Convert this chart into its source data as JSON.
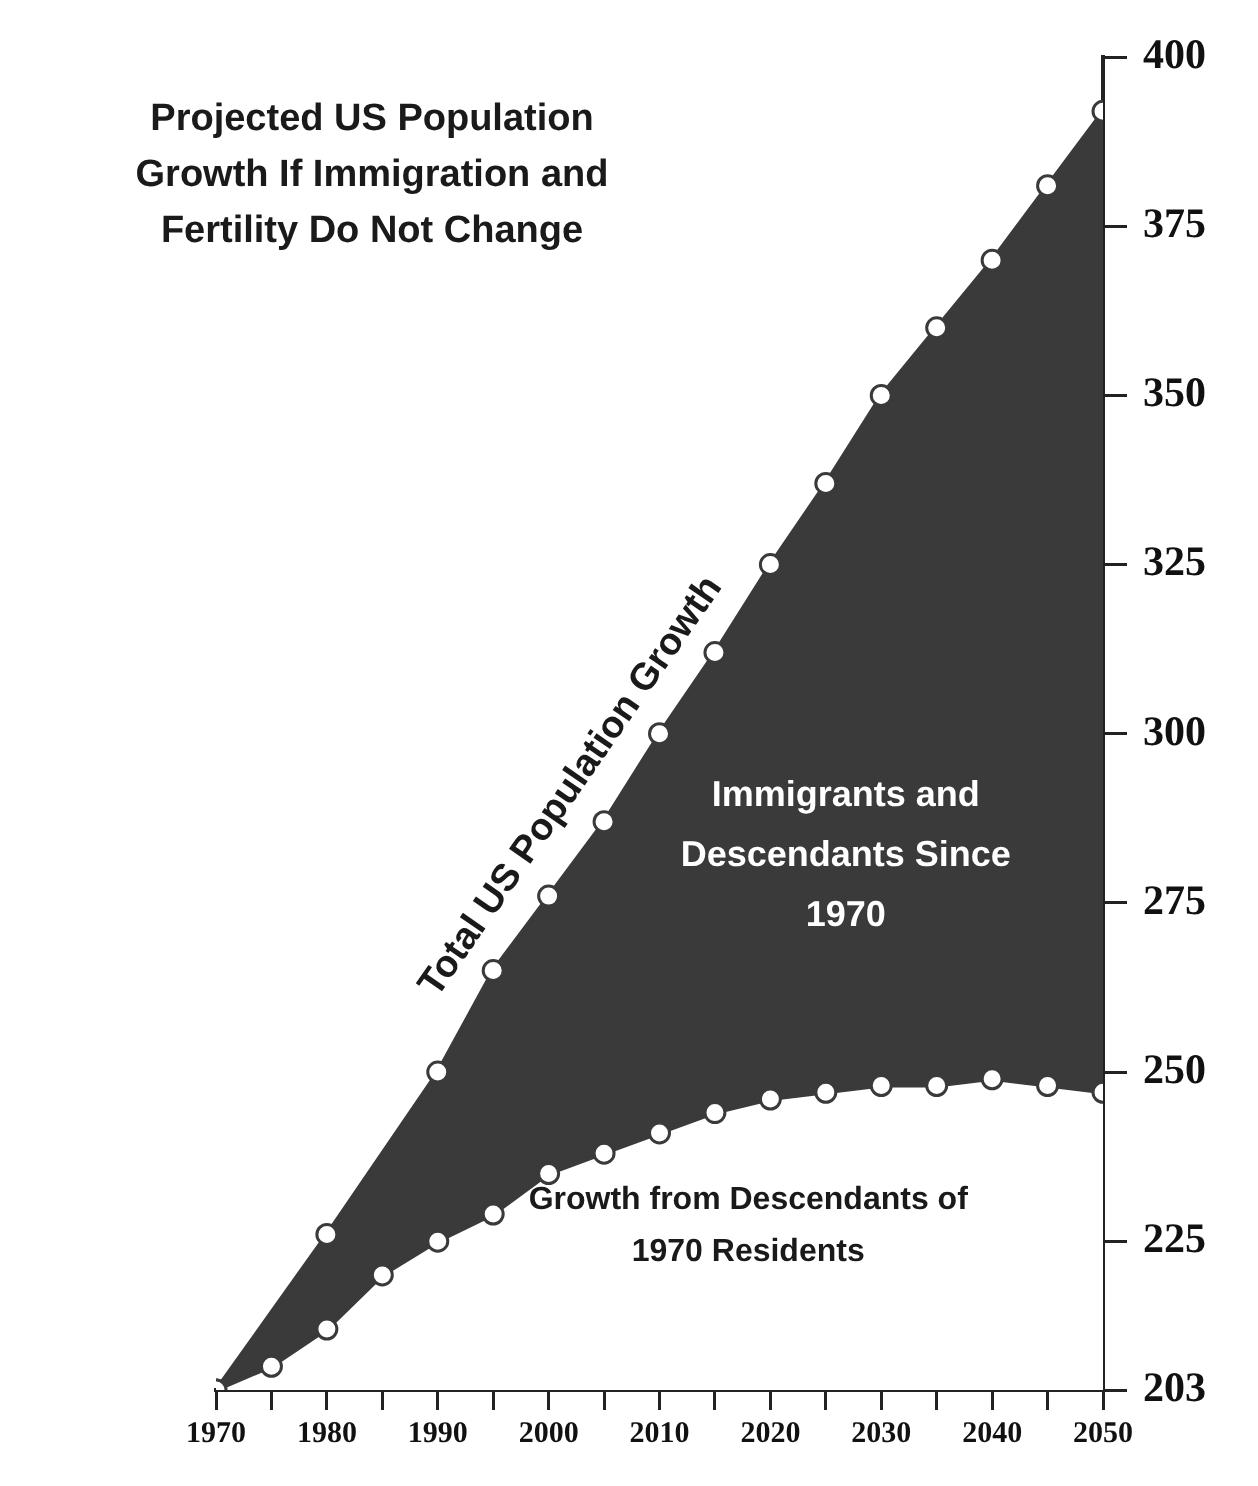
{
  "chart_data": {
    "type": "area",
    "title": "Projected US Population Growth If Immigration and Fertility Do Not Change",
    "series": [
      {
        "name": "Total US Population Growth",
        "type": "area",
        "color": "#3a3a3a",
        "x": [
          1970,
          1980,
          1990,
          1995,
          2000,
          2005,
          2010,
          2015,
          2020,
          2025,
          2030,
          2035,
          2040,
          2045,
          2050
        ],
        "values": [
          203,
          226,
          250,
          265,
          276,
          287,
          300,
          312,
          325,
          337,
          350,
          360,
          370,
          381,
          392
        ]
      },
      {
        "name": "Growth from Descendants of 1970 Residents",
        "type": "line",
        "color": "#3a3a3a",
        "x": [
          1970,
          1975,
          1980,
          1985,
          1990,
          1995,
          2000,
          2005,
          2010,
          2015,
          2020,
          2025,
          2030,
          2035,
          2040,
          2045,
          2050
        ],
        "values": [
          203,
          206.5,
          212,
          220,
          225,
          229,
          235,
          238,
          241,
          244,
          246,
          247,
          248,
          248,
          249,
          248,
          247
        ]
      }
    ],
    "annotations": [
      "Immigrants and Descendants Since 1970"
    ],
    "xlim": [
      1970,
      2050
    ],
    "xticks": [
      1970,
      {
        "value": 1975,
        "label": null
      },
      1980,
      {
        "value": 1985,
        "label": null
      },
      1990,
      {
        "value": 1995,
        "label": null
      },
      2000,
      {
        "value": 2005,
        "label": null
      },
      2010,
      {
        "value": 2015,
        "label": null
      },
      2020,
      {
        "value": 2025,
        "label": null
      },
      2030,
      {
        "value": 2035,
        "label": null
      },
      2040,
      {
        "value": 2045,
        "label": null
      },
      2050
    ],
    "ylim": [
      203,
      400
    ],
    "yticks": [
      203,
      225,
      250,
      275,
      300,
      325,
      350,
      375,
      400
    ],
    "grid": false,
    "legend": false,
    "marker": "circle"
  }
}
